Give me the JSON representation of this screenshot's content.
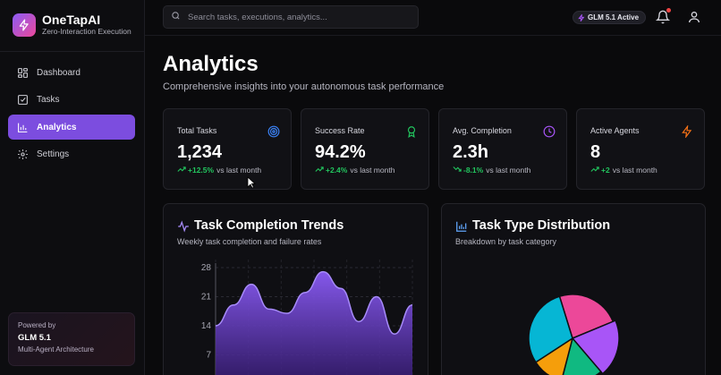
{
  "brand": {
    "name": "OneTapAI",
    "subtitle": "Zero-Interaction Execution"
  },
  "sidebar": {
    "items": [
      {
        "label": "Dashboard",
        "icon": "dashboard-icon",
        "active": false
      },
      {
        "label": "Tasks",
        "icon": "tasks-icon",
        "active": false
      },
      {
        "label": "Analytics",
        "icon": "analytics-icon",
        "active": true
      },
      {
        "label": "Settings",
        "icon": "settings-icon",
        "active": false
      }
    ],
    "powered": {
      "line1": "Powered by",
      "model": "GLM 5.1",
      "line3": "Multi-Agent Architecture"
    }
  },
  "topbar": {
    "search_placeholder": "Search tasks, executions, analytics...",
    "model_badge": "GLM 5.1 Active"
  },
  "page": {
    "title": "Analytics",
    "subtitle": "Comprehensive insights into your autonomous task performance"
  },
  "stats": [
    {
      "label": "Total Tasks",
      "value": "1,234",
      "change": "+12.5%",
      "suffix": "vs last month",
      "icon": "target-icon",
      "icon_color": "#3b82f6",
      "trend": "up"
    },
    {
      "label": "Success Rate",
      "value": "94.2%",
      "change": "+2.4%",
      "suffix": "vs last month",
      "icon": "award-icon",
      "icon_color": "#22c55e",
      "trend": "up"
    },
    {
      "label": "Avg. Completion",
      "value": "2.3h",
      "change": "-8.1%",
      "suffix": "vs last month",
      "icon": "clock-icon",
      "icon_color": "#a855f7",
      "trend": "down"
    },
    {
      "label": "Active Agents",
      "value": "8",
      "change": "+2",
      "suffix": "vs last month",
      "icon": "zap-icon",
      "icon_color": "#f97316",
      "trend": "up"
    }
  ],
  "trends_panel": {
    "title": "Task Completion Trends",
    "subtitle": "Weekly task completion and failure rates"
  },
  "distribution_panel": {
    "title": "Task Type Distribution",
    "subtitle": "Breakdown by task category"
  },
  "chart_data": [
    {
      "type": "area",
      "title": "Task Completion Trends",
      "ytick_labels": [
        "28",
        "21",
        "14",
        "7"
      ],
      "ylim": [
        0,
        28
      ],
      "x": [
        0,
        1,
        2,
        3,
        4,
        5,
        6,
        7,
        8,
        9,
        10,
        11
      ],
      "values": [
        14,
        19,
        24,
        18,
        17,
        22,
        27,
        23,
        15,
        21,
        12,
        19
      ],
      "color": "#8b5cf6",
      "grid": true
    },
    {
      "type": "pie",
      "title": "Task Type Distribution",
      "slices": [
        {
          "value": 20,
          "color": "#ec4899"
        },
        {
          "value": 17,
          "color": "#a855f7"
        },
        {
          "value": 13,
          "color": "#10b981"
        },
        {
          "value": 10,
          "color": "#f59e0b"
        },
        {
          "value": 25,
          "color": "#06b6d4"
        }
      ]
    }
  ]
}
